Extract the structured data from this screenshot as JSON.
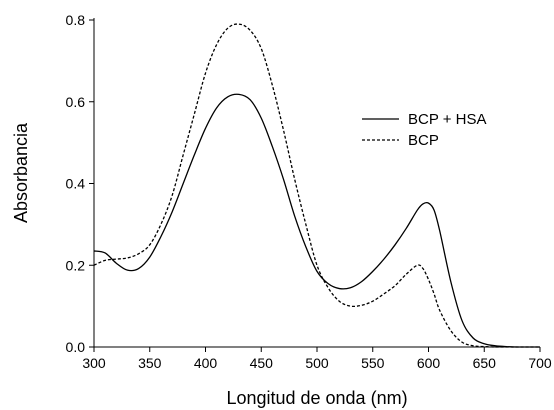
{
  "chart_data": {
    "type": "line",
    "title": "",
    "xlabel": "Longitud de onda (nm)",
    "ylabel": "Absorbancia",
    "xlim": [
      300,
      700
    ],
    "ylim": [
      0.0,
      0.8
    ],
    "xticks": [
      300,
      350,
      400,
      450,
      500,
      550,
      600,
      650,
      700
    ],
    "yticks": [
      0.0,
      0.2,
      0.4,
      0.6,
      0.8
    ],
    "ytick_labels": [
      "0.0",
      "0.2",
      "0.4",
      "0.6",
      "0.8"
    ],
    "grid": false,
    "legend_position": "right",
    "series": [
      {
        "name": "BCP + HSA",
        "style": "solid",
        "color": "#000000",
        "x": [
          300,
          310,
          320,
          330,
          340,
          350,
          360,
          370,
          380,
          390,
          400,
          410,
          420,
          430,
          440,
          450,
          460,
          470,
          480,
          490,
          500,
          510,
          520,
          530,
          540,
          550,
          560,
          570,
          580,
          590,
          595,
          600,
          605,
          610,
          620,
          630,
          640,
          650,
          660,
          670,
          680,
          690,
          700
        ],
        "y": [
          0.235,
          0.23,
          0.205,
          0.188,
          0.192,
          0.22,
          0.27,
          0.33,
          0.4,
          0.47,
          0.535,
          0.585,
          0.612,
          0.618,
          0.605,
          0.56,
          0.49,
          0.41,
          0.32,
          0.245,
          0.185,
          0.155,
          0.143,
          0.145,
          0.16,
          0.185,
          0.215,
          0.25,
          0.29,
          0.335,
          0.35,
          0.352,
          0.335,
          0.285,
          0.16,
          0.065,
          0.022,
          0.008,
          0.003,
          0.001,
          0.0,
          0.0,
          0.0
        ]
      },
      {
        "name": "BCP",
        "style": "dashed",
        "color": "#000000",
        "x": [
          300,
          310,
          320,
          330,
          340,
          350,
          360,
          370,
          380,
          390,
          400,
          410,
          420,
          430,
          440,
          450,
          460,
          470,
          480,
          490,
          500,
          510,
          520,
          530,
          540,
          550,
          560,
          570,
          580,
          590,
          595,
          600,
          605,
          610,
          620,
          630,
          640,
          650,
          660,
          670,
          680,
          690,
          700
        ],
        "y": [
          0.2,
          0.212,
          0.215,
          0.218,
          0.228,
          0.25,
          0.3,
          0.37,
          0.47,
          0.57,
          0.67,
          0.74,
          0.78,
          0.79,
          0.775,
          0.73,
          0.64,
          0.53,
          0.41,
          0.3,
          0.2,
          0.145,
          0.112,
          0.1,
          0.102,
          0.112,
          0.13,
          0.15,
          0.178,
          0.2,
          0.192,
          0.165,
          0.13,
          0.09,
          0.04,
          0.012,
          0.003,
          0.001,
          0.0,
          0.0,
          0.0,
          0.0,
          0.0
        ]
      }
    ]
  }
}
